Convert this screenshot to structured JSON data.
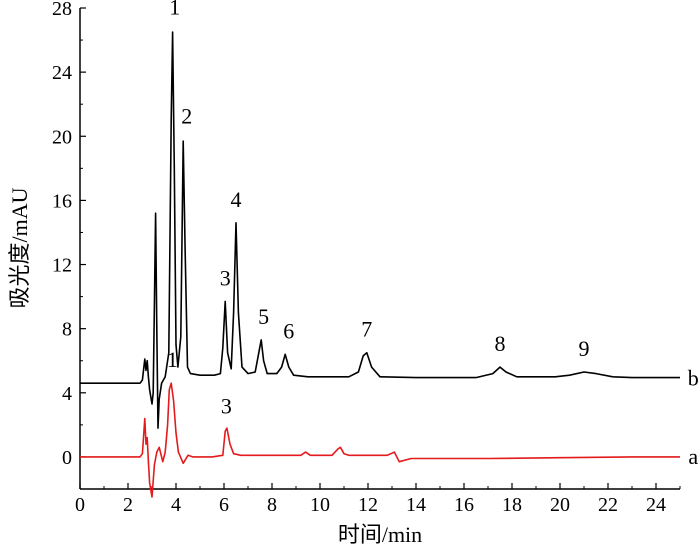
{
  "chart_data": {
    "type": "line",
    "xlabel": "时间/min",
    "ylabel": "吸光度/mAU",
    "xlim": [
      0,
      25
    ],
    "ylim": [
      -2,
      28
    ],
    "x_ticks": [
      "0",
      "2",
      "4",
      "6",
      "8",
      "10",
      "12",
      "14",
      "16",
      "18",
      "20",
      "22",
      "24"
    ],
    "y_ticks": [
      "0",
      "4",
      "8",
      "12",
      "16",
      "20",
      "24",
      "28"
    ],
    "grid": false,
    "series": [
      {
        "name": "b",
        "color": "#000000",
        "baseline": 4.6,
        "points": [
          [
            0.0,
            4.6
          ],
          [
            2.5,
            4.6
          ],
          [
            2.6,
            4.8
          ],
          [
            2.7,
            6.1
          ],
          [
            2.75,
            5.4
          ],
          [
            2.8,
            6.0
          ],
          [
            2.85,
            5.0
          ],
          [
            2.9,
            4.2
          ],
          [
            3.0,
            3.3
          ],
          [
            3.05,
            4.0
          ],
          [
            3.1,
            9.5
          ],
          [
            3.15,
            15.2
          ],
          [
            3.2,
            8.0
          ],
          [
            3.25,
            1.8
          ],
          [
            3.3,
            3.6
          ],
          [
            3.4,
            4.6
          ],
          [
            3.55,
            5.0
          ],
          [
            3.7,
            6.5
          ],
          [
            3.8,
            21.0
          ],
          [
            3.86,
            26.5
          ],
          [
            3.93,
            18.0
          ],
          [
            4.0,
            7.0
          ],
          [
            4.08,
            5.6
          ],
          [
            4.2,
            7.5
          ],
          [
            4.3,
            19.7
          ],
          [
            4.38,
            13.0
          ],
          [
            4.48,
            5.6
          ],
          [
            4.6,
            5.2
          ],
          [
            5.0,
            5.1
          ],
          [
            5.6,
            5.1
          ],
          [
            5.85,
            5.2
          ],
          [
            5.95,
            6.8
          ],
          [
            6.05,
            9.7
          ],
          [
            6.15,
            6.5
          ],
          [
            6.3,
            5.5
          ],
          [
            6.4,
            9.0
          ],
          [
            6.5,
            14.6
          ],
          [
            6.6,
            9.0
          ],
          [
            6.75,
            5.6
          ],
          [
            7.0,
            5.2
          ],
          [
            7.3,
            5.3
          ],
          [
            7.45,
            6.5
          ],
          [
            7.55,
            7.3
          ],
          [
            7.65,
            6.0
          ],
          [
            7.8,
            5.2
          ],
          [
            8.2,
            5.2
          ],
          [
            8.4,
            5.6
          ],
          [
            8.55,
            6.4
          ],
          [
            8.7,
            5.6
          ],
          [
            8.9,
            5.1
          ],
          [
            9.5,
            5.0
          ],
          [
            10.5,
            5.0
          ],
          [
            11.2,
            5.0
          ],
          [
            11.6,
            5.3
          ],
          [
            11.8,
            6.3
          ],
          [
            11.95,
            6.5
          ],
          [
            12.15,
            5.6
          ],
          [
            12.5,
            5.0
          ],
          [
            14.0,
            4.95
          ],
          [
            16.5,
            4.95
          ],
          [
            17.2,
            5.2
          ],
          [
            17.5,
            5.6
          ],
          [
            17.75,
            5.3
          ],
          [
            18.2,
            5.0
          ],
          [
            19.8,
            5.0
          ],
          [
            20.4,
            5.1
          ],
          [
            21.0,
            5.3
          ],
          [
            21.5,
            5.2
          ],
          [
            22.2,
            5.0
          ],
          [
            23.0,
            4.95
          ],
          [
            25.0,
            4.95
          ]
        ]
      },
      {
        "name": "a",
        "color": "#e41a1c",
        "baseline": 0.0,
        "points": [
          [
            0.0,
            0.0
          ],
          [
            2.5,
            0.0
          ],
          [
            2.6,
            0.2
          ],
          [
            2.7,
            2.4
          ],
          [
            2.75,
            0.8
          ],
          [
            2.8,
            1.2
          ],
          [
            2.85,
            -0.3
          ],
          [
            2.9,
            -1.6
          ],
          [
            3.0,
            -2.5
          ],
          [
            3.05,
            -1.5
          ],
          [
            3.1,
            -0.5
          ],
          [
            3.2,
            0.3
          ],
          [
            3.3,
            0.6
          ],
          [
            3.45,
            -0.3
          ],
          [
            3.55,
            0.3
          ],
          [
            3.65,
            2.0
          ],
          [
            3.72,
            4.2
          ],
          [
            3.8,
            4.6
          ],
          [
            3.9,
            3.5
          ],
          [
            4.0,
            1.5
          ],
          [
            4.1,
            0.3
          ],
          [
            4.3,
            -0.4
          ],
          [
            4.5,
            0.1
          ],
          [
            4.7,
            0.0
          ],
          [
            5.5,
            0.0
          ],
          [
            5.95,
            0.1
          ],
          [
            6.05,
            1.6
          ],
          [
            6.12,
            1.8
          ],
          [
            6.25,
            0.8
          ],
          [
            6.4,
            0.2
          ],
          [
            6.7,
            0.1
          ],
          [
            7.0,
            0.1
          ],
          [
            9.2,
            0.1
          ],
          [
            9.4,
            0.3
          ],
          [
            9.6,
            0.1
          ],
          [
            10.5,
            0.1
          ],
          [
            10.75,
            0.5
          ],
          [
            10.85,
            0.6
          ],
          [
            11.0,
            0.2
          ],
          [
            11.2,
            0.1
          ],
          [
            12.8,
            0.1
          ],
          [
            13.1,
            0.3
          ],
          [
            13.3,
            -0.3
          ],
          [
            13.8,
            -0.1
          ],
          [
            15.0,
            -0.1
          ],
          [
            17.0,
            -0.1
          ],
          [
            20.0,
            -0.05
          ],
          [
            23.0,
            0.0
          ],
          [
            25.0,
            0.0
          ]
        ]
      }
    ],
    "peak_labels": [
      {
        "text": "1",
        "x": 3.95,
        "y": 27.6
      },
      {
        "text": "2",
        "x": 4.45,
        "y": 20.8
      },
      {
        "text": "3",
        "x": 6.05,
        "y": 10.7
      },
      {
        "text": "4",
        "x": 6.5,
        "y": 15.6
      },
      {
        "text": "5",
        "x": 7.65,
        "y": 8.3
      },
      {
        "text": "6",
        "x": 8.7,
        "y": 7.4
      },
      {
        "text": "7",
        "x": 11.95,
        "y": 7.5
      },
      {
        "text": "8",
        "x": 17.5,
        "y": 6.6
      },
      {
        "text": "9",
        "x": 21.0,
        "y": 6.3
      },
      {
        "text": "1",
        "x": 3.85,
        "y": 5.6
      },
      {
        "text": "3",
        "x": 6.1,
        "y": 2.7
      }
    ],
    "series_labels": [
      {
        "text": "b",
        "x": 25.55,
        "y": 4.9
      },
      {
        "text": "a",
        "x": 25.55,
        "y": 0.0
      }
    ]
  }
}
